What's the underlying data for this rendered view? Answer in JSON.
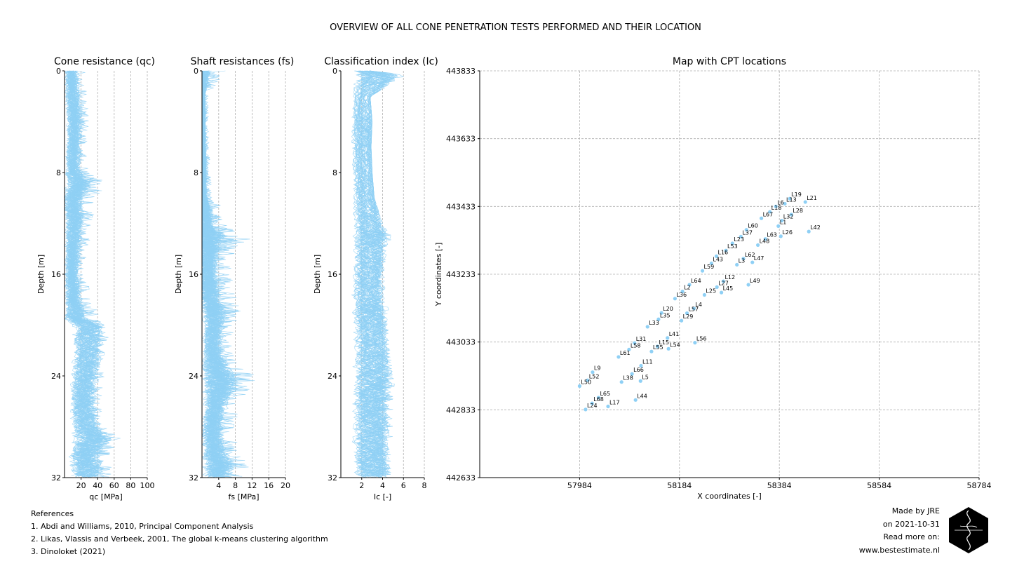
{
  "title": "OVERVIEW OF ALL CONE PENETRATION TESTS PERFORMED AND THEIR LOCATION",
  "colors": {
    "trace": "#8fd0f5",
    "grid": "#b0b0b0",
    "logo": "#000000"
  },
  "chart_data": [
    {
      "type": "line",
      "title": "Cone resistance (q$_c$)",
      "title_display": "Cone resistance (qc)",
      "xlabel": "q$_c$ [MPa]",
      "xlabel_display": "qc [MPa]",
      "ylabel": "Depth [m]",
      "xlim": [
        0,
        100
      ],
      "ylim": [
        32,
        0
      ],
      "xticks": [
        20,
        40,
        60,
        80,
        100
      ],
      "yticks": [
        0,
        8,
        16,
        24,
        32
      ],
      "grid": "vertical dashed",
      "profile": {
        "depth": [
          0,
          2,
          4,
          6,
          8,
          8.8,
          10,
          12,
          14,
          16,
          18,
          19.5,
          20,
          22,
          24,
          26,
          28,
          29,
          30,
          32
        ],
        "median": [
          8,
          10,
          12,
          11,
          10,
          18,
          11,
          12,
          10,
          9,
          11,
          14,
          30,
          28,
          25,
          22,
          26,
          35,
          24,
          28
        ],
        "max": [
          25,
          28,
          30,
          28,
          30,
          52,
          40,
          34,
          30,
          28,
          34,
          45,
          58,
          50,
          48,
          45,
          52,
          72,
          55,
          60
        ]
      }
    },
    {
      "type": "line",
      "title": "Shaft resistances (f$_s$)",
      "title_display": "Shaft resistances (fs)",
      "xlabel": "f$_s$ [MPa]",
      "xlabel_display": "fs [MPa]",
      "ylabel": "Depth [m]",
      "xlim": [
        0,
        20
      ],
      "ylim": [
        32,
        0
      ],
      "xticks": [
        4,
        8,
        12,
        16,
        20
      ],
      "yticks": [
        0,
        8,
        16,
        24,
        32
      ],
      "grid": "vertical dashed",
      "profile": {
        "depth": [
          0,
          2,
          4,
          6,
          8,
          10,
          11,
          12,
          13,
          14,
          16,
          18,
          19,
          20,
          22,
          24,
          25,
          26,
          28,
          30,
          31,
          32
        ],
        "median": [
          0.3,
          0.4,
          0.4,
          0.5,
          0.5,
          0.6,
          0.9,
          1.0,
          1.8,
          1.5,
          1.5,
          2.0,
          3.0,
          2.8,
          2.5,
          4.0,
          4.5,
          3.5,
          2.5,
          3.0,
          4.5,
          3.5
        ],
        "max": [
          6,
          1.5,
          1.6,
          1.8,
          2.0,
          2.5,
          6.5,
          5,
          13,
          8,
          7,
          9,
          9.5,
          8,
          7,
          13,
          13.5,
          9.5,
          8,
          9,
          13,
          10
        ]
      }
    },
    {
      "type": "line",
      "title": "Classification index (I$_c$)",
      "title_display": "Classification index (Ic)",
      "xlabel": "I$_c$ [-]",
      "xlabel_display": "Ic [-]",
      "ylabel": "Depth [m]",
      "xlim": [
        0,
        8
      ],
      "ylim": [
        32,
        0
      ],
      "xticks": [
        2,
        4,
        6,
        8
      ],
      "yticks": [
        0,
        8,
        16,
        24,
        32
      ],
      "grid": "vertical dashed",
      "profile": {
        "depth": [
          0,
          0.3,
          2,
          4,
          6,
          8,
          10,
          12,
          13,
          14,
          16,
          18,
          19,
          20,
          22,
          24,
          26,
          28,
          30,
          32
        ],
        "median": [
          2.2,
          3.5,
          2.2,
          2.1,
          2.1,
          2.2,
          2.3,
          2.6,
          2.8,
          2.7,
          2.6,
          2.6,
          2.6,
          2.8,
          2.9,
          3.0,
          2.8,
          2.9,
          2.8,
          2.9
        ],
        "max": [
          2.8,
          6.5,
          2.8,
          3.0,
          2.9,
          3.0,
          3.2,
          4.0,
          5.0,
          4.5,
          4.2,
          4.5,
          4.8,
          4.5,
          4.8,
          5.5,
          5.0,
          5.2,
          5.0,
          4.8
        ]
      }
    },
    {
      "type": "scatter",
      "title": "Map with CPT locations",
      "xlabel": "X coordinates [-]",
      "ylabel": "Y coordinates [-]",
      "xlim": [
        57784,
        58784
      ],
      "ylim": [
        442633,
        443833
      ],
      "xticks": [
        57984,
        58184,
        58384,
        58584,
        58784
      ],
      "yticks": [
        442633,
        442833,
        443033,
        443233,
        443433,
        443633,
        443833
      ],
      "grid": "dashed",
      "points": [
        {
          "label": "L19",
          "x": 58405,
          "y": 443456
        },
        {
          "label": "L13",
          "x": 58395,
          "y": 443441
        },
        {
          "label": "L21",
          "x": 58436,
          "y": 443446
        },
        {
          "label": "L6",
          "x": 58377,
          "y": 443433
        },
        {
          "label": "L18",
          "x": 58365,
          "y": 443417
        },
        {
          "label": "L28",
          "x": 58408,
          "y": 443409
        },
        {
          "label": "L67",
          "x": 58348,
          "y": 443398
        },
        {
          "label": "L32",
          "x": 58389,
          "y": 443391
        },
        {
          "label": "L1",
          "x": 58382,
          "y": 443375
        },
        {
          "label": "L42",
          "x": 58443,
          "y": 443359
        },
        {
          "label": "L60",
          "x": 58318,
          "y": 443364
        },
        {
          "label": "L26",
          "x": 58387,
          "y": 443345
        },
        {
          "label": "L37",
          "x": 58307,
          "y": 443344
        },
        {
          "label": "L63",
          "x": 58356,
          "y": 443337
        },
        {
          "label": "L23",
          "x": 58290,
          "y": 443324
        },
        {
          "label": "L48",
          "x": 58341,
          "y": 443319
        },
        {
          "label": "L53",
          "x": 58277,
          "y": 443303
        },
        {
          "label": "L16",
          "x": 58258,
          "y": 443286
        },
        {
          "label": "L62",
          "x": 58312,
          "y": 443279
        },
        {
          "label": "L47",
          "x": 58330,
          "y": 443268
        },
        {
          "label": "L43",
          "x": 58248,
          "y": 443265
        },
        {
          "label": "L3",
          "x": 58299,
          "y": 443261
        },
        {
          "label": "L59",
          "x": 58230,
          "y": 443243
        },
        {
          "label": "L12",
          "x": 58272,
          "y": 443212
        },
        {
          "label": "L49",
          "x": 58322,
          "y": 443202
        },
        {
          "label": "L64",
          "x": 58204,
          "y": 443202
        },
        {
          "label": "L27",
          "x": 58259,
          "y": 443195
        },
        {
          "label": "L2",
          "x": 58190,
          "y": 443182
        },
        {
          "label": "L45",
          "x": 58268,
          "y": 443179
        },
        {
          "label": "L25",
          "x": 58234,
          "y": 443172
        },
        {
          "label": "L36",
          "x": 58175,
          "y": 443161
        },
        {
          "label": "L4",
          "x": 58213,
          "y": 443132
        },
        {
          "label": "L20",
          "x": 58148,
          "y": 443119
        },
        {
          "label": "L57",
          "x": 58199,
          "y": 443118
        },
        {
          "label": "L35",
          "x": 58142,
          "y": 443100
        },
        {
          "label": "L29",
          "x": 58188,
          "y": 443096
        },
        {
          "label": "L33",
          "x": 58120,
          "y": 443078
        },
        {
          "label": "L41",
          "x": 58160,
          "y": 443045
        },
        {
          "label": "L56",
          "x": 58215,
          "y": 443031
        },
        {
          "label": "L31",
          "x": 58094,
          "y": 443030
        },
        {
          "label": "L15",
          "x": 58140,
          "y": 443020
        },
        {
          "label": "L58",
          "x": 58083,
          "y": 443011
        },
        {
          "label": "L54",
          "x": 58162,
          "y": 443013
        },
        {
          "label": "L55",
          "x": 58128,
          "y": 443005
        },
        {
          "label": "L61",
          "x": 58062,
          "y": 442989
        },
        {
          "label": "L11",
          "x": 58107,
          "y": 442963
        },
        {
          "label": "L9",
          "x": 58010,
          "y": 442944
        },
        {
          "label": "L66",
          "x": 58089,
          "y": 442939
        },
        {
          "label": "L52",
          "x": 58000,
          "y": 442920
        },
        {
          "label": "L38",
          "x": 58068,
          "y": 442915
        },
        {
          "label": "L5",
          "x": 58106,
          "y": 442918
        },
        {
          "label": "L50",
          "x": 57984,
          "y": 442903
        },
        {
          "label": "L65",
          "x": 58022,
          "y": 442869
        },
        {
          "label": "L44",
          "x": 58096,
          "y": 442862
        },
        {
          "label": "L68",
          "x": 58009,
          "y": 442852
        },
        {
          "label": "L17",
          "x": 58041,
          "y": 442843
        },
        {
          "label": "L24",
          "x": 57996,
          "y": 442834
        }
      ]
    }
  ],
  "references": {
    "heading": "References",
    "items": [
      "1. Abdi and Williams, 2010, Principal Component Analysis",
      "2. Likas, Vlassis and Verbeek, 2001, The global k-means clustering algorithm",
      "3. Dinoloket (2021)"
    ]
  },
  "credits": {
    "made_by": "Made by JRE",
    "date": "on 2021-10-31",
    "read_more": "Read more on:",
    "website": "www.bestestimate.nl"
  }
}
